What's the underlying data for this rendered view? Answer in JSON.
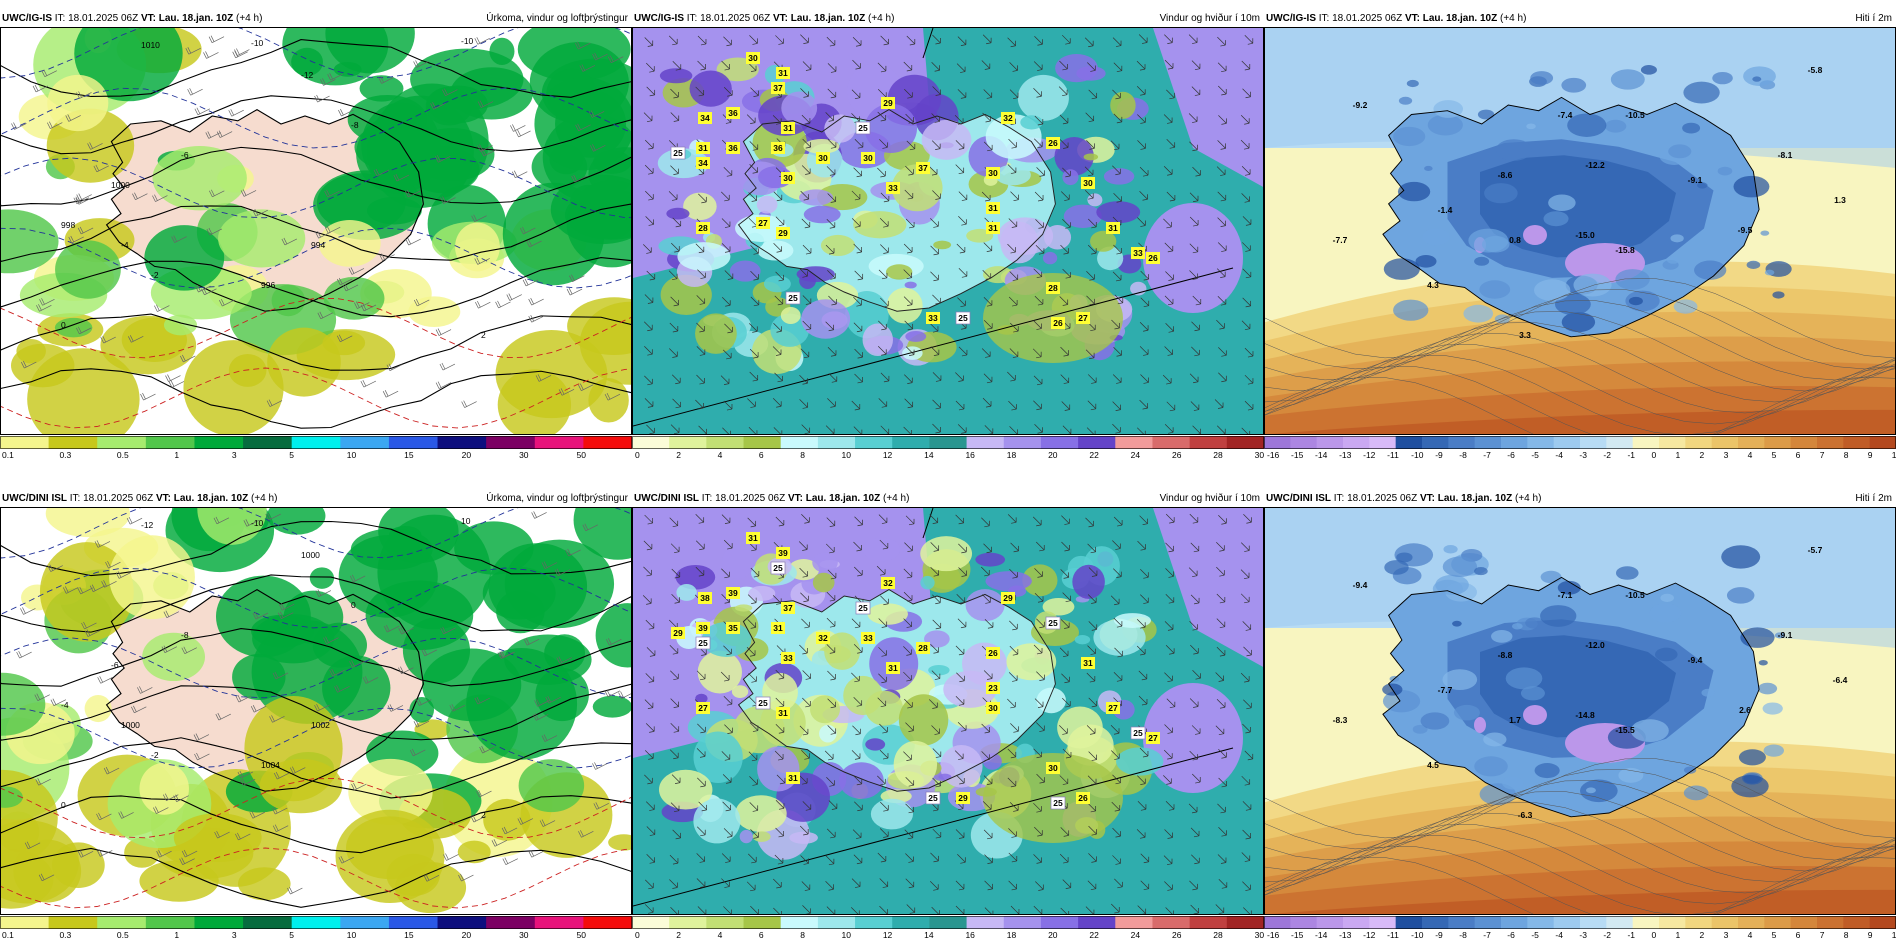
{
  "colors": {
    "precip": [
      "#f4f58d",
      "#c7c81c",
      "#a6ec6e",
      "#52c74b",
      "#00a93a",
      "#066c3e",
      "#00f0ee",
      "#3ba7f2",
      "#2a58e6",
      "#0d0e7e",
      "#7c0063",
      "#e8137b",
      "#f40c0c"
    ],
    "wind": [
      "#fbfcd8",
      "#dff39c",
      "#c2df74",
      "#a6c648",
      "#c9fafd",
      "#9de8ec",
      "#58cfd2",
      "#2fadad",
      "#2a9690",
      "#c7b8f5",
      "#a592ee",
      "#8770e6",
      "#6443c9",
      "#f29b9b",
      "#d96b6b",
      "#c04040",
      "#a22424"
    ],
    "temp": [
      "#9d76d9",
      "#ac86e2",
      "#bb97ea",
      "#caa8f2",
      "#d8baf8",
      "#1f4fa0",
      "#3568b5",
      "#4a7dc6",
      "#5b91d3",
      "#6ea5df",
      "#84b8e8",
      "#9dcaef",
      "#b7dbf4",
      "#d2e9f2",
      "#f8f5c0",
      "#f6e8a0",
      "#f1d67f",
      "#ebc468",
      "#e4b058",
      "#dc9b48",
      "#d4863b",
      "#cb7130",
      "#c05c26",
      "#b4481e"
    ],
    "land_cream": "#f6dccf",
    "sea_white": "#ffffff"
  },
  "rows": [
    {
      "panels": [
        {
          "model": "UWC/IG-IS",
          "it_label": "IT: 18.01.2025 06Z",
          "vt_label": "VT: Lau. 18.jan. 10Z",
          "lead": "(+4 h)",
          "title": "Úrkoma, vindur og loftþrýstingur",
          "kind": "precip",
          "labels": [
            {
              "t": "1010",
              "c": "#000"
            },
            {
              "t": "-10",
              "c": "#223399"
            },
            {
              "t": "-12",
              "c": "#223399"
            },
            {
              "t": "-10",
              "c": "#223399"
            },
            {
              "t": "1000",
              "c": "#000"
            },
            {
              "t": "998",
              "c": "#000"
            },
            {
              "t": "-4",
              "c": "#223399"
            },
            {
              "t": "-2",
              "c": "#223399"
            },
            {
              "t": "0",
              "c": "#cc2222"
            },
            {
              "t": "2",
              "c": "#cc2222"
            },
            {
              "t": "996",
              "c": "#000"
            },
            {
              "t": "994",
              "c": "#000"
            },
            {
              "t": "-6",
              "c": "#223399"
            },
            {
              "t": "-8",
              "c": "#223399"
            }
          ]
        },
        {
          "model": "UWC/IG-IS",
          "it_label": "IT: 18.01.2025 06Z",
          "vt_label": "VT: Lau. 18.jan. 10Z",
          "lead": "(+4 h)",
          "title": "Vindur og hviður í 10m",
          "kind": "wind",
          "gusts": [
            "30",
            "37",
            "31",
            "31",
            "34",
            "36",
            "31",
            "36",
            "36",
            "25",
            "34",
            "30",
            "30",
            "29",
            "25",
            "28",
            "27",
            "30",
            "25",
            "29",
            "33",
            "37",
            "33",
            "31",
            "32",
            "30",
            "26",
            "30",
            "31",
            "33",
            "26",
            "28",
            "27",
            "26",
            "31",
            "25"
          ]
        },
        {
          "model": "UWC/IG-IS",
          "it_label": "IT: 18.01.2025 06Z",
          "vt_label": "VT: Lau. 18.jan. 10Z",
          "lead": "(+4 h)",
          "title": "Hiti í 2m",
          "kind": "temp",
          "temps": [
            "-9.2",
            "-7.4",
            "-10.5",
            "-5.8",
            "-8.6",
            "-12.2",
            "-9.1",
            "-8.1",
            "-1.4",
            "-7.7",
            "0.8",
            "-15.0",
            "-15.8",
            "-9.5",
            "1.3",
            "4.3",
            "3.3"
          ]
        }
      ]
    },
    {
      "panels": [
        {
          "model": "UWC/DINI ISL",
          "it_label": "IT: 18.01.2025 06Z",
          "vt_label": "VT: Lau. 18.jan. 10Z",
          "lead": "(+4 h)",
          "title": "Úrkoma, vindur og loftþrýstingur",
          "kind": "precip",
          "labels": [
            {
              "t": "-12",
              "c": "#223399"
            },
            {
              "t": "-10",
              "c": "#223399"
            },
            {
              "t": "1000",
              "c": "#000"
            },
            {
              "t": "10",
              "c": "#223399"
            },
            {
              "t": "-6",
              "c": "#223399"
            },
            {
              "t": "-4",
              "c": "#223399"
            },
            {
              "t": "1000",
              "c": "#000"
            },
            {
              "t": "-2",
              "c": "#223399"
            },
            {
              "t": "0",
              "c": "#cc2222"
            },
            {
              "t": "2",
              "c": "#cc2222"
            },
            {
              "t": "1004",
              "c": "#000"
            },
            {
              "t": "1002",
              "c": "#000"
            },
            {
              "t": "-8",
              "c": "#223399"
            },
            {
              "t": "0",
              "c": "#cc2222"
            }
          ]
        },
        {
          "model": "UWC/DINI ISL",
          "it_label": "IT: 18.01.2025 06Z",
          "vt_label": "VT: Lau. 18.jan. 10Z",
          "lead": "(+4 h)",
          "title": "Vindur og hviður í 10m",
          "kind": "wind",
          "gusts": [
            "31",
            "25",
            "37",
            "39",
            "38",
            "39",
            "39",
            "35",
            "31",
            "25",
            "25",
            "33",
            "33",
            "31",
            "29",
            "27",
            "25",
            "32",
            "31",
            "32",
            "31",
            "28",
            "25",
            "30",
            "29",
            "31",
            "25",
            "26",
            "27",
            "25",
            "27",
            "30",
            "26",
            "25",
            "23",
            "29"
          ]
        },
        {
          "model": "UWC/DINI ISL",
          "it_label": "IT: 18.01.2025 06Z",
          "vt_label": "VT: Lau. 18.jan. 10Z",
          "lead": "(+4 h)",
          "title": "Hiti í 2m",
          "kind": "temp",
          "temps": [
            "-9.4",
            "-7.1",
            "-10.5",
            "-5.7",
            "-8.8",
            "-12.0",
            "-9.4",
            "-9.1",
            "-7.7",
            "-8.3",
            "1.7",
            "-14.8",
            "-15.5",
            "2.6",
            "-6.4",
            "4.5",
            "-6.3"
          ]
        }
      ]
    }
  ],
  "colorbars": {
    "precip": [
      "0.1",
      "0.3",
      "0.5",
      "1",
      "3",
      "5",
      "10",
      "15",
      "20",
      "30",
      "50"
    ],
    "wind": [
      "0",
      "2",
      "4",
      "6",
      "8",
      "10",
      "12",
      "14",
      "16",
      "18",
      "20",
      "22",
      "24",
      "26",
      "28",
      "30"
    ],
    "temp": [
      "-16",
      "-15",
      "-14",
      "-13",
      "-12",
      "-11",
      "-10",
      "-9",
      "-8",
      "-7",
      "-6",
      "-5",
      "-4",
      "-3",
      "-2",
      "-1",
      "0",
      "1",
      "2",
      "3",
      "4",
      "5",
      "6",
      "7",
      "8",
      "9",
      "10"
    ]
  }
}
